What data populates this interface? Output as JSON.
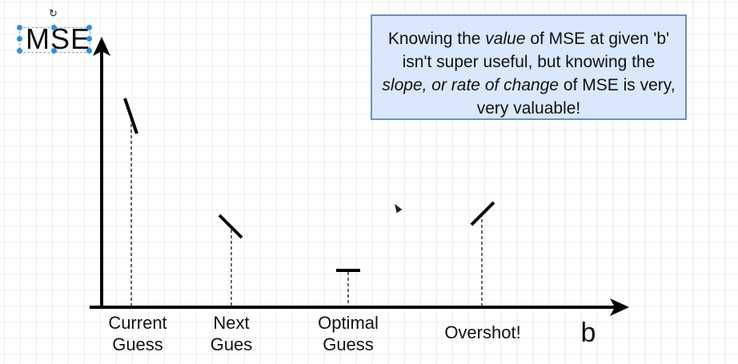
{
  "axis": {
    "y_title": "MSE",
    "x_title": "b"
  },
  "note": {
    "part1": "Knowing the ",
    "em1": "value",
    "part2": " of MSE at given 'b' isn't super useful, but knowing the ",
    "em2": "slope, or rate of change",
    "part3": " of MSE is very, very valuable!"
  },
  "points": [
    {
      "line1": "Current",
      "line2": "Guess",
      "slope": "steep negative"
    },
    {
      "line1": "Next",
      "line2": "Gues",
      "slope": "negative"
    },
    {
      "line1": "Optimal",
      "line2": "Guess",
      "slope": "zero"
    },
    {
      "line1": "Overshot!",
      "line2": "",
      "slope": "positive"
    }
  ],
  "editor": {
    "rotate_icon": "↻"
  }
}
